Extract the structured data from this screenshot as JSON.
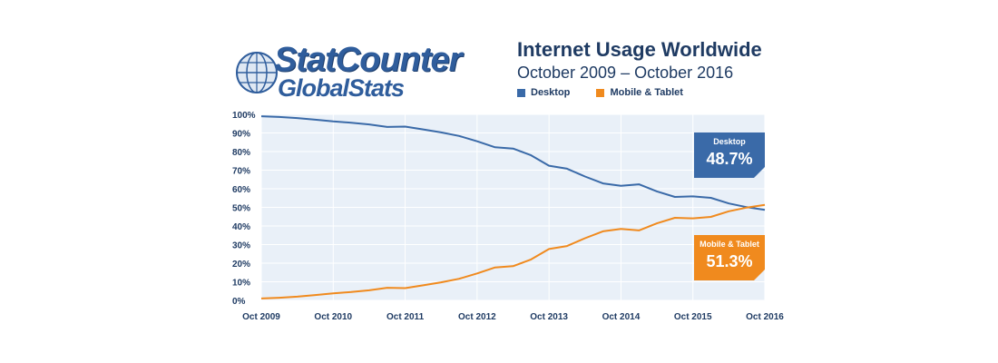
{
  "header": {
    "logo_main": "StatCounter",
    "logo_sub": "GlobalStats",
    "title": "Internet Usage Worldwide",
    "subtitle": "October 2009 – October 2016"
  },
  "colors": {
    "desktop": "#3a6aa8",
    "mobile": "#f08a1e",
    "plot_bg": "#e9f0f8",
    "grid": "#ffffff",
    "text": "#1f3b63"
  },
  "chart_data": {
    "type": "line",
    "legend": [
      "Desktop",
      "Mobile & Tablet"
    ],
    "legend_placement": "top",
    "yticks": [
      "100%",
      "90%",
      "80%",
      "70%",
      "60%",
      "50%",
      "40%",
      "30%",
      "20%",
      "10%",
      "0%"
    ],
    "xticks": [
      "Oct 2009",
      "Oct 2010",
      "Oct 2011",
      "Oct 2012",
      "Oct 2013",
      "Oct 2014",
      "Oct 2015",
      "Oct 2016"
    ],
    "ylim": [
      0,
      100
    ],
    "grid": true,
    "series": [
      {
        "name": "Desktop",
        "callout_label": "Desktop",
        "callout_value": "48.7%",
        "points": [
          [
            2009.75,
            99.0
          ],
          [
            2010.0,
            98.6
          ],
          [
            2010.25,
            98.0
          ],
          [
            2010.5,
            97.1
          ],
          [
            2010.75,
            96.2
          ],
          [
            2011.0,
            95.5
          ],
          [
            2011.25,
            94.6
          ],
          [
            2011.5,
            93.2
          ],
          [
            2011.75,
            93.4
          ],
          [
            2012.0,
            91.9
          ],
          [
            2012.25,
            90.3
          ],
          [
            2012.5,
            88.4
          ],
          [
            2012.75,
            85.5
          ],
          [
            2013.0,
            82.3
          ],
          [
            2013.25,
            81.6
          ],
          [
            2013.5,
            78.0
          ],
          [
            2013.75,
            72.4
          ],
          [
            2014.0,
            70.8
          ],
          [
            2014.25,
            66.6
          ],
          [
            2014.5,
            62.9
          ],
          [
            2014.75,
            61.6
          ],
          [
            2015.0,
            62.4
          ],
          [
            2015.25,
            58.6
          ],
          [
            2015.5,
            55.6
          ],
          [
            2015.75,
            55.9
          ],
          [
            2016.0,
            55.1
          ],
          [
            2016.25,
            52.1
          ],
          [
            2016.5,
            50.1
          ],
          [
            2016.75,
            48.7
          ]
        ]
      },
      {
        "name": "Mobile & Tablet",
        "callout_label": "Mobile & Tablet",
        "callout_value": "51.3%",
        "points": [
          [
            2009.75,
            1.0
          ],
          [
            2010.0,
            1.4
          ],
          [
            2010.25,
            2.0
          ],
          [
            2010.5,
            2.9
          ],
          [
            2010.75,
            3.8
          ],
          [
            2011.0,
            4.5
          ],
          [
            2011.25,
            5.4
          ],
          [
            2011.5,
            6.8
          ],
          [
            2011.75,
            6.6
          ],
          [
            2012.0,
            8.1
          ],
          [
            2012.25,
            9.7
          ],
          [
            2012.5,
            11.6
          ],
          [
            2012.75,
            14.5
          ],
          [
            2013.0,
            17.7
          ],
          [
            2013.25,
            18.4
          ],
          [
            2013.5,
            22.0
          ],
          [
            2013.75,
            27.6
          ],
          [
            2014.0,
            29.2
          ],
          [
            2014.25,
            33.4
          ],
          [
            2014.5,
            37.1
          ],
          [
            2014.75,
            38.4
          ],
          [
            2015.0,
            37.6
          ],
          [
            2015.25,
            41.4
          ],
          [
            2015.5,
            44.4
          ],
          [
            2015.75,
            44.1
          ],
          [
            2016.0,
            44.9
          ],
          [
            2016.25,
            47.9
          ],
          [
            2016.5,
            49.9
          ],
          [
            2016.75,
            51.3
          ]
        ]
      }
    ]
  }
}
